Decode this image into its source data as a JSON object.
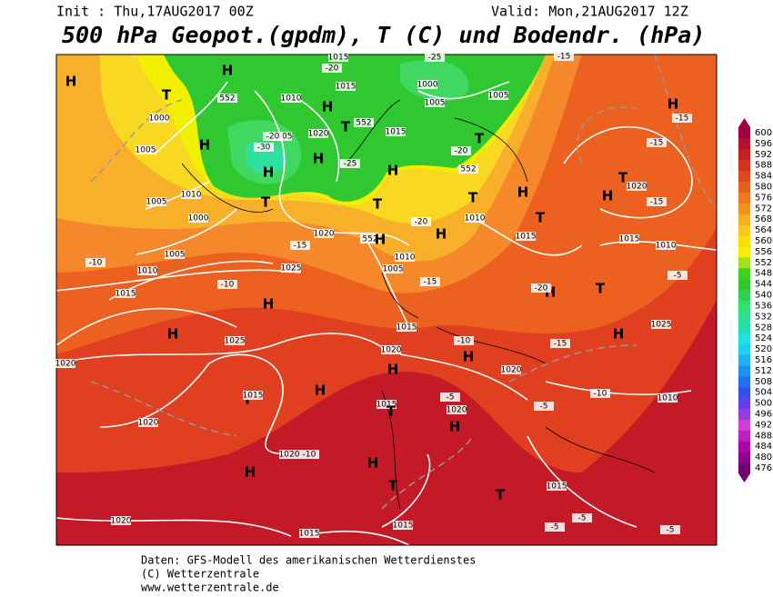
{
  "header": {
    "init": "Init : Thu,17AUG2017 00Z",
    "valid": "Valid: Mon,21AUG2017 12Z",
    "title": "500 hPa Geopot.(gpdm), T (C) und Bodendr. (hPa)"
  },
  "footer": {
    "line1": "Daten: GFS-Modell des amerikanischen Wetterdienstes",
    "line2": "(C) Wetterzentrale",
    "line3": "www.wetterzentrale.de"
  },
  "colorbar": {
    "levels": [
      476,
      480,
      484,
      488,
      492,
      496,
      500,
      504,
      508,
      512,
      516,
      520,
      524,
      528,
      532,
      536,
      540,
      544,
      548,
      552,
      556,
      560,
      564,
      568,
      572,
      576,
      580,
      584,
      588,
      592,
      596,
      600
    ],
    "colors": [
      "#700070",
      "#900090",
      "#b000b0",
      "#c020c0",
      "#d040d0",
      "#9040e0",
      "#6040f0",
      "#3050f0",
      "#2070f0",
      "#2090f0",
      "#20b0f0",
      "#20d0f0",
      "#20e0e0",
      "#20e0b0",
      "#30e090",
      "#30e070",
      "#30d050",
      "#30c830",
      "#40d020",
      "#a0e020",
      "#f0f000",
      "#f8e000",
      "#f8c820",
      "#f8b020",
      "#f09020",
      "#f07820",
      "#e86020",
      "#e04820",
      "#d83020",
      "#c82020",
      "#b81030",
      "#a00040"
    ]
  },
  "map": {
    "labels": [
      "H",
      "H",
      "T",
      "552",
      "1000",
      "1005",
      "H",
      "1010",
      "1005",
      "1020",
      "H",
      "H",
      "T",
      "552",
      "1015",
      "1015",
      "1000",
      "1005",
      "1005",
      "H",
      "T",
      "552",
      "T",
      "H",
      "1010",
      "1000",
      "1005",
      "T",
      "1020",
      "552",
      "H",
      "1010",
      "1005",
      "1010",
      "T",
      "H",
      "T",
      "1015",
      "H",
      "1005",
      "1010",
      "1025",
      "1015",
      "H",
      "H",
      "1025",
      "1020",
      "1015",
      "1020",
      "H",
      "H",
      "1020",
      "H",
      "T",
      "1015",
      "1010",
      "H",
      "T",
      "H",
      "1020",
      "1025",
      "H",
      "1010",
      "T",
      "1015",
      "H",
      "1015",
      "T",
      "1020",
      "H",
      "1020",
      "1020",
      "H",
      "H",
      "T",
      "T",
      "1015",
      "1020",
      "1015",
      "1015",
      "-15",
      "-15",
      "-15",
      "-20",
      "-25",
      "-30",
      "-20",
      "-20",
      "-15",
      "-10",
      "-10",
      "-15",
      "-20",
      "-15",
      "-10",
      "-5",
      "-10",
      "-5",
      "-5",
      "-10",
      "-5",
      "-5",
      "-5",
      "-25",
      "-20",
      "-15",
      "1015"
    ]
  }
}
